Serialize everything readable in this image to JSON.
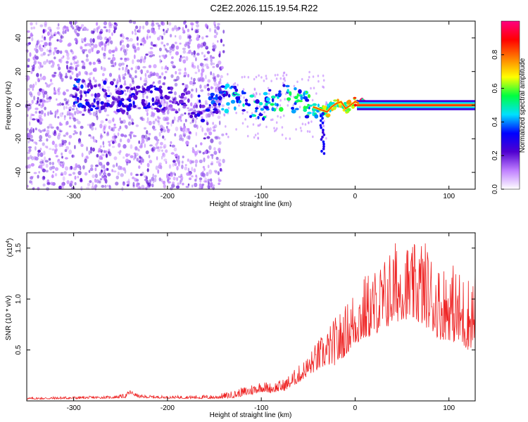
{
  "title": "C2E2.2026.115.19.54.R22",
  "colors": {
    "snr_line": "#ee2222",
    "spectro_low": "#c9a8f5",
    "spectro_mid": "#5a11e6",
    "spectro_band": "#ff4444"
  },
  "chart_data": [
    {
      "type": "heatmap",
      "name": "spectrogram",
      "xlabel": "Height of straight line (km)",
      "ylabel": "Frequency (Hz)",
      "xlim": [
        -350,
        128
      ],
      "ylim": [
        -50,
        50
      ],
      "x_ticks": [
        -300,
        -200,
        -100,
        0,
        100
      ],
      "x_tick_labels": [
        "-300",
        "-200",
        "-100",
        "0",
        "100"
      ],
      "y_ticks": [
        -40,
        -20,
        0,
        20,
        40
      ],
      "y_tick_labels": [
        "-40",
        "-20",
        "0",
        "20",
        "40"
      ],
      "colorbar": {
        "label": "Normalized spectral amplitude",
        "range": [
          0,
          1
        ],
        "ticks": [
          0.0,
          0.2,
          0.4,
          0.6,
          0.8
        ],
        "tick_labels": [
          "0.0",
          "0.2",
          "0.4",
          "0.6",
          "0.8"
        ],
        "colormap": [
          "#ffffff",
          "#c080ff",
          "#5000d0",
          "#0000ff",
          "#00e0ff",
          "#00ff40",
          "#ffff00",
          "#ff8000",
          "#ff0000",
          "#ff0080"
        ]
      },
      "noise_extent_x": [
        -350,
        -140
      ],
      "ridge": {
        "x": [
          -300,
          -280,
          -260,
          -240,
          -220,
          -200,
          -180,
          -160,
          -140,
          -120,
          -100,
          -80,
          -60,
          -45,
          -35,
          -30,
          -25,
          -20,
          -15,
          -10,
          -5,
          0,
          10,
          50,
          128
        ],
        "freq": [
          8,
          5,
          6,
          2,
          4,
          3,
          2,
          -2,
          4,
          2,
          -2,
          5,
          2,
          -1,
          -3,
          -4,
          -1,
          1,
          2,
          -2,
          0,
          2,
          0,
          0,
          0
        ],
        "amplitude": [
          0.35,
          0.3,
          0.3,
          0.3,
          0.3,
          0.25,
          0.25,
          0.3,
          0.4,
          0.45,
          0.45,
          0.5,
          0.5,
          0.55,
          0.6,
          0.65,
          0.7,
          0.72,
          0.75,
          0.78,
          0.8,
          0.85,
          0.9,
          0.9,
          0.9
        ]
      }
    },
    {
      "type": "line",
      "name": "snr",
      "xlabel": "Height of straight line (km)",
      "ylabel": "SNR (10 * v/v)",
      "y_scale_label": "(x10",
      "y_scale_exponent": "4",
      "xlim": [
        -350,
        128
      ],
      "ylim": [
        0,
        16500
      ],
      "x_ticks": [
        -300,
        -200,
        -100,
        0,
        100
      ],
      "x_tick_labels": [
        "-300",
        "-200",
        "-100",
        "0",
        "100"
      ],
      "y_ticks": [
        5000,
        10000,
        15000
      ],
      "y_tick_labels": [
        "0.5",
        "1.0",
        "1.5"
      ],
      "envelope": {
        "x": [
          -350,
          -300,
          -260,
          -245,
          -240,
          -230,
          -200,
          -150,
          -130,
          -110,
          -100,
          -90,
          -75,
          -60,
          -50,
          -40,
          -30,
          -20,
          -10,
          0,
          10,
          20,
          30,
          40,
          50,
          60,
          70,
          80,
          90,
          100,
          110,
          120,
          128
        ],
        "base": [
          150,
          200,
          250,
          300,
          700,
          300,
          250,
          200,
          300,
          600,
          900,
          800,
          1000,
          1800,
          2500,
          3000,
          3500,
          3500,
          4500,
          5500,
          6000,
          6500,
          7000,
          7500,
          8000,
          8000,
          7500,
          7000,
          6000,
          6000,
          5500,
          5000,
          5500
        ],
        "peak": [
          350,
          450,
          500,
          700,
          1100,
          600,
          500,
          600,
          1000,
          1700,
          2000,
          1800,
          2200,
          3500,
          4500,
          6000,
          7000,
          8500,
          9500,
          11500,
          12500,
          13000,
          14000,
          15500,
          16500,
          15000,
          16500,
          15000,
          13500,
          14000,
          13000,
          12500,
          13000
        ]
      }
    }
  ]
}
